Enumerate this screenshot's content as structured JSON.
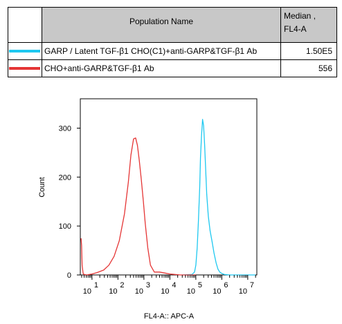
{
  "legend": {
    "header_population": "Population Name",
    "header_median_line1": "Median ,",
    "header_median_line2": "FL4-A",
    "rows": [
      {
        "name": "GARP / Latent TGF-β1 CHO(C1)+anti-GARP&TGF-β1 Ab",
        "median": "1.50E5",
        "color": "#1ec8f0"
      },
      {
        "name": "CHO+anti-GARP&TGF-β1 Ab",
        "median": "556",
        "color": "#e53535"
      }
    ]
  },
  "chart_data": {
    "type": "line",
    "title": "",
    "xlabel": "FL4-A:: APC-A",
    "ylabel": "Count",
    "xscale": "log",
    "xlim": [
      0.55,
      7.35
    ],
    "ylim": [
      0,
      360
    ],
    "yticks": [
      0,
      100,
      200,
      300
    ],
    "ytick_labels": [
      "0",
      "100",
      "200",
      "300"
    ],
    "xtick_labels": [
      {
        "base": "10",
        "exp": "1"
      },
      {
        "base": "10",
        "exp": "2"
      },
      {
        "base": "10",
        "exp": "3"
      },
      {
        "base": "10",
        "exp": "4"
      },
      {
        "base": "10",
        "exp": "5"
      },
      {
        "base": "10",
        "exp": "6"
      },
      {
        "base": "10",
        "exp": "7"
      }
    ],
    "series": [
      {
        "name": "GARP / Latent TGF-β1 CHO(C1)+anti-GARP&TGF-β1 Ab",
        "color": "#1ec8f0",
        "x": [
          4.5,
          4.85,
          4.95,
          5.0,
          5.05,
          5.1,
          5.15,
          5.18,
          5.22,
          5.26,
          5.3,
          5.34,
          5.38,
          5.42,
          5.48,
          5.55,
          5.62,
          5.7,
          5.78,
          5.85,
          5.92,
          6.0,
          6.1,
          6.3,
          7.3
        ],
        "y": [
          0,
          1,
          6,
          20,
          55,
          110,
          180,
          240,
          285,
          318,
          305,
          265,
          215,
          165,
          120,
          90,
          70,
          45,
          25,
          12,
          6,
          3,
          1,
          0,
          0
        ]
      },
      {
        "name": "CHO+anti-GARP&TGF-β1 Ab",
        "color": "#e53535",
        "x": [
          0.58,
          0.6,
          0.62,
          0.66,
          0.7,
          0.8,
          1.0,
          1.2,
          1.45,
          1.65,
          1.85,
          2.05,
          2.25,
          2.4,
          2.5,
          2.6,
          2.68,
          2.75,
          2.82,
          2.9,
          2.98,
          3.05,
          3.15,
          3.25,
          3.4,
          3.6,
          3.8,
          4.0,
          4.2,
          4.4,
          4.6,
          5.0
        ],
        "y": [
          75,
          60,
          20,
          3,
          1,
          0,
          2,
          5,
          10,
          20,
          38,
          70,
          125,
          190,
          245,
          278,
          280,
          265,
          235,
          195,
          150,
          105,
          55,
          20,
          6,
          6,
          4,
          2,
          1,
          0,
          0,
          0
        ]
      }
    ]
  }
}
